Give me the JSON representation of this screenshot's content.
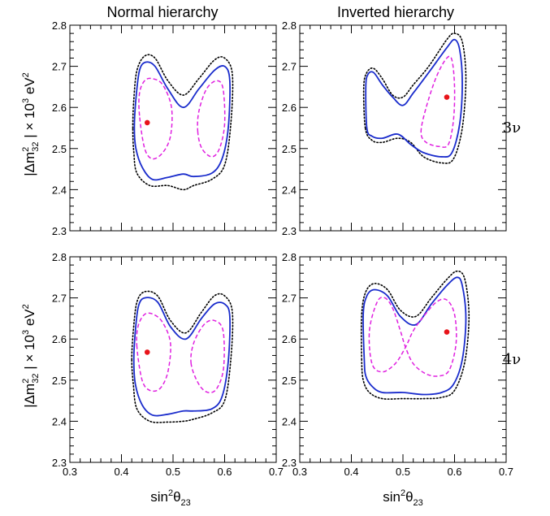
{
  "figure": {
    "col_titles": [
      "Normal hierarchy",
      "Inverted hierarchy"
    ],
    "row_labels": [
      "3ν",
      "4ν"
    ],
    "xlabel_main": "sin",
    "xlabel_sup": "2",
    "xlabel_theta": "θ",
    "xlabel_sub": "23",
    "ylabel_bar": "|",
    "ylabel_delta": "Δm",
    "ylabel_sup": "2",
    "ylabel_sub": "32",
    "ylabel_times": "× 10",
    "ylabel_exp": "3",
    "ylabel_unit": " eV",
    "ylabel_unit_sup": "2"
  },
  "chart_data": {
    "type": "contour",
    "layout": "2x2 panel grid",
    "xlim": [
      0.3,
      0.7
    ],
    "ylim": [
      2.3,
      2.8
    ],
    "xticks": [
      "0.3",
      "0.4",
      "0.5",
      "0.6",
      "0.7"
    ],
    "yticks": [
      "2.3",
      "2.4",
      "2.5",
      "2.6",
      "2.7",
      "2.8"
    ],
    "line_styles": {
      "outer": {
        "color": "#000000",
        "dash": "dotted"
      },
      "middle": {
        "color": "#1a2ccc",
        "dash": "solid"
      },
      "inner": {
        "color": "#e020e0",
        "dash": "dashed"
      }
    },
    "best_fit_color": "#e8141a",
    "panels": [
      {
        "id": "nh-3nu",
        "best_fit": [
          0.45,
          2.563
        ],
        "outer": [
          [
            0.422,
            2.55
          ],
          [
            0.424,
            2.62
          ],
          [
            0.43,
            2.69
          ],
          [
            0.445,
            2.725
          ],
          [
            0.465,
            2.72
          ],
          [
            0.49,
            2.665
          ],
          [
            0.52,
            2.63
          ],
          [
            0.55,
            2.67
          ],
          [
            0.58,
            2.715
          ],
          [
            0.6,
            2.72
          ],
          [
            0.615,
            2.68
          ],
          [
            0.612,
            2.56
          ],
          [
            0.6,
            2.46
          ],
          [
            0.575,
            2.425
          ],
          [
            0.54,
            2.41
          ],
          [
            0.52,
            2.4
          ],
          [
            0.49,
            2.41
          ],
          [
            0.455,
            2.41
          ],
          [
            0.43,
            2.44
          ],
          [
            0.424,
            2.49
          ]
        ],
        "middle": [
          [
            0.425,
            2.55
          ],
          [
            0.428,
            2.62
          ],
          [
            0.435,
            2.69
          ],
          [
            0.447,
            2.71
          ],
          [
            0.465,
            2.7
          ],
          [
            0.49,
            2.645
          ],
          [
            0.52,
            2.6
          ],
          [
            0.55,
            2.645
          ],
          [
            0.58,
            2.69
          ],
          [
            0.6,
            2.7
          ],
          [
            0.61,
            2.665
          ],
          [
            0.607,
            2.55
          ],
          [
            0.595,
            2.475
          ],
          [
            0.575,
            2.44
          ],
          [
            0.54,
            2.432
          ],
          [
            0.52,
            2.438
          ],
          [
            0.49,
            2.43
          ],
          [
            0.46,
            2.425
          ],
          [
            0.44,
            2.455
          ],
          [
            0.428,
            2.5
          ]
        ],
        "inner": [
          [
            [
              0.435,
              2.58
            ],
            [
              0.435,
              2.635
            ],
            [
              0.445,
              2.665
            ],
            [
              0.46,
              2.67
            ],
            [
              0.48,
              2.655
            ],
            [
              0.497,
              2.6
            ],
            [
              0.495,
              2.53
            ],
            [
              0.48,
              2.49
            ],
            [
              0.46,
              2.475
            ],
            [
              0.445,
              2.5
            ]
          ],
          [
            [
              0.548,
              2.54
            ],
            [
              0.55,
              2.59
            ],
            [
              0.565,
              2.645
            ],
            [
              0.585,
              2.665
            ],
            [
              0.597,
              2.645
            ],
            [
              0.6,
              2.56
            ],
            [
              0.59,
              2.5
            ],
            [
              0.575,
              2.48
            ],
            [
              0.556,
              2.5
            ]
          ]
        ]
      },
      {
        "id": "ih-3nu",
        "best_fit": [
          0.585,
          2.625
        ],
        "outer": [
          [
            0.427,
            2.55
          ],
          [
            0.424,
            2.65
          ],
          [
            0.43,
            2.685
          ],
          [
            0.443,
            2.695
          ],
          [
            0.46,
            2.67
          ],
          [
            0.48,
            2.63
          ],
          [
            0.5,
            2.625
          ],
          [
            0.52,
            2.655
          ],
          [
            0.55,
            2.7
          ],
          [
            0.585,
            2.765
          ],
          [
            0.6,
            2.78
          ],
          [
            0.615,
            2.76
          ],
          [
            0.622,
            2.67
          ],
          [
            0.615,
            2.55
          ],
          [
            0.598,
            2.475
          ],
          [
            0.575,
            2.465
          ],
          [
            0.54,
            2.48
          ],
          [
            0.515,
            2.515
          ],
          [
            0.49,
            2.525
          ],
          [
            0.46,
            2.515
          ],
          [
            0.44,
            2.52
          ]
        ],
        "middle": [
          [
            0.43,
            2.55
          ],
          [
            0.428,
            2.65
          ],
          [
            0.432,
            2.68
          ],
          [
            0.443,
            2.685
          ],
          [
            0.46,
            2.655
          ],
          [
            0.48,
            2.625
          ],
          [
            0.5,
            2.605
          ],
          [
            0.52,
            2.635
          ],
          [
            0.55,
            2.685
          ],
          [
            0.585,
            2.745
          ],
          [
            0.6,
            2.765
          ],
          [
            0.61,
            2.74
          ],
          [
            0.615,
            2.66
          ],
          [
            0.61,
            2.56
          ],
          [
            0.595,
            2.49
          ],
          [
            0.575,
            2.48
          ],
          [
            0.54,
            2.49
          ],
          [
            0.515,
            2.51
          ],
          [
            0.49,
            2.535
          ],
          [
            0.46,
            2.525
          ],
          [
            0.44,
            2.53
          ]
        ],
        "inner": [
          [
            [
              0.535,
              2.54
            ],
            [
              0.545,
              2.6
            ],
            [
              0.565,
              2.675
            ],
            [
              0.585,
              2.72
            ],
            [
              0.595,
              2.715
            ],
            [
              0.6,
              2.65
            ],
            [
              0.598,
              2.57
            ],
            [
              0.588,
              2.51
            ],
            [
              0.57,
              2.505
            ],
            [
              0.545,
              2.515
            ]
          ]
        ]
      },
      {
        "id": "nh-4nu",
        "best_fit": [
          0.45,
          2.568
        ],
        "outer": [
          [
            0.42,
            2.55
          ],
          [
            0.423,
            2.62
          ],
          [
            0.43,
            2.69
          ],
          [
            0.445,
            2.715
          ],
          [
            0.47,
            2.705
          ],
          [
            0.495,
            2.645
          ],
          [
            0.525,
            2.615
          ],
          [
            0.555,
            2.665
          ],
          [
            0.58,
            2.705
          ],
          [
            0.6,
            2.705
          ],
          [
            0.615,
            2.665
          ],
          [
            0.612,
            2.55
          ],
          [
            0.6,
            2.45
          ],
          [
            0.575,
            2.42
          ],
          [
            0.54,
            2.405
          ],
          [
            0.52,
            2.4
          ],
          [
            0.49,
            2.398
          ],
          [
            0.455,
            2.4
          ],
          [
            0.43,
            2.43
          ],
          [
            0.423,
            2.49
          ]
        ],
        "middle": [
          [
            0.424,
            2.55
          ],
          [
            0.427,
            2.62
          ],
          [
            0.433,
            2.68
          ],
          [
            0.445,
            2.7
          ],
          [
            0.47,
            2.69
          ],
          [
            0.495,
            2.63
          ],
          [
            0.525,
            2.6
          ],
          [
            0.555,
            2.65
          ],
          [
            0.58,
            2.685
          ],
          [
            0.6,
            2.685
          ],
          [
            0.61,
            2.655
          ],
          [
            0.607,
            2.545
          ],
          [
            0.595,
            2.46
          ],
          [
            0.575,
            2.43
          ],
          [
            0.54,
            2.425
          ],
          [
            0.52,
            2.425
          ],
          [
            0.49,
            2.417
          ],
          [
            0.46,
            2.415
          ],
          [
            0.44,
            2.44
          ],
          [
            0.427,
            2.49
          ]
        ],
        "inner": [
          [
            [
              0.43,
              2.58
            ],
            [
              0.432,
              2.63
            ],
            [
              0.445,
              2.66
            ],
            [
              0.462,
              2.66
            ],
            [
              0.48,
              2.64
            ],
            [
              0.495,
              2.59
            ],
            [
              0.49,
              2.52
            ],
            [
              0.475,
              2.48
            ],
            [
              0.455,
              2.475
            ],
            [
              0.44,
              2.5
            ]
          ],
          [
            [
              0.535,
              2.54
            ],
            [
              0.54,
              2.59
            ],
            [
              0.56,
              2.635
            ],
            [
              0.58,
              2.645
            ],
            [
              0.597,
              2.62
            ],
            [
              0.598,
              2.53
            ],
            [
              0.585,
              2.48
            ],
            [
              0.568,
              2.47
            ],
            [
              0.55,
              2.49
            ]
          ]
        ]
      },
      {
        "id": "ih-4nu",
        "best_fit": [
          0.585,
          2.617
        ],
        "outer": [
          [
            0.42,
            2.55
          ],
          [
            0.42,
            2.66
          ],
          [
            0.428,
            2.715
          ],
          [
            0.445,
            2.735
          ],
          [
            0.47,
            2.72
          ],
          [
            0.495,
            2.67
          ],
          [
            0.525,
            2.655
          ],
          [
            0.555,
            2.7
          ],
          [
            0.585,
            2.745
          ],
          [
            0.605,
            2.765
          ],
          [
            0.62,
            2.745
          ],
          [
            0.628,
            2.655
          ],
          [
            0.62,
            2.545
          ],
          [
            0.6,
            2.475
          ],
          [
            0.575,
            2.458
          ],
          [
            0.54,
            2.455
          ],
          [
            0.5,
            2.455
          ],
          [
            0.46,
            2.455
          ],
          [
            0.435,
            2.47
          ],
          [
            0.423,
            2.5
          ]
        ],
        "middle": [
          [
            0.425,
            2.55
          ],
          [
            0.423,
            2.66
          ],
          [
            0.43,
            2.705
          ],
          [
            0.445,
            2.72
          ],
          [
            0.47,
            2.705
          ],
          [
            0.495,
            2.655
          ],
          [
            0.525,
            2.635
          ],
          [
            0.555,
            2.685
          ],
          [
            0.585,
            2.73
          ],
          [
            0.605,
            2.75
          ],
          [
            0.615,
            2.73
          ],
          [
            0.622,
            2.65
          ],
          [
            0.615,
            2.55
          ],
          [
            0.598,
            2.49
          ],
          [
            0.575,
            2.47
          ],
          [
            0.54,
            2.465
          ],
          [
            0.5,
            2.47
          ],
          [
            0.46,
            2.47
          ],
          [
            0.44,
            2.485
          ],
          [
            0.428,
            2.51
          ]
        ],
        "inner": [
          [
            [
              0.435,
              2.62
            ],
            [
              0.45,
              2.69
            ],
            [
              0.465,
              2.7
            ],
            [
              0.48,
              2.675
            ],
            [
              0.495,
              2.62
            ],
            [
              0.505,
              2.58
            ],
            [
              0.52,
              2.54
            ],
            [
              0.545,
              2.515
            ],
            [
              0.57,
              2.51
            ],
            [
              0.59,
              2.525
            ],
            [
              0.603,
              2.59
            ],
            [
              0.6,
              2.66
            ],
            [
              0.585,
              2.695
            ],
            [
              0.565,
              2.69
            ],
            [
              0.54,
              2.655
            ],
            [
              0.52,
              2.62
            ],
            [
              0.505,
              2.58
            ],
            [
              0.485,
              2.54
            ],
            [
              0.46,
              2.52
            ],
            [
              0.44,
              2.54
            ]
          ]
        ]
      }
    ]
  }
}
